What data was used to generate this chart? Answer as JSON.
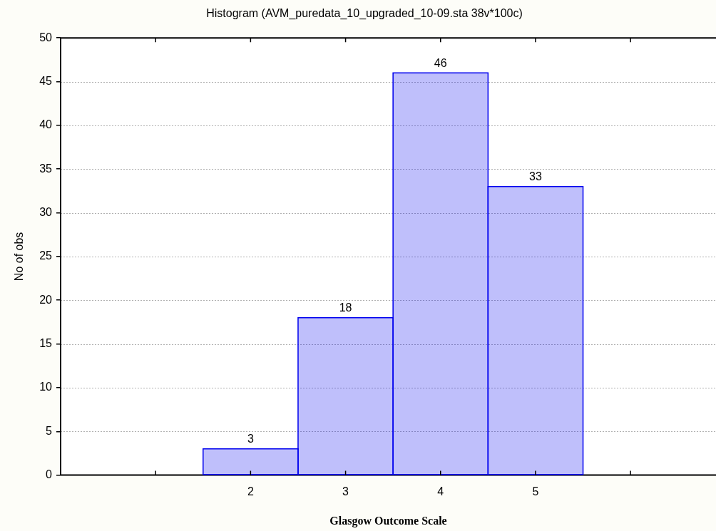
{
  "chart_data": {
    "type": "histogram",
    "title": "Histogram (AVM_puredata_10_upgraded_10-09.sta 38v*100c)",
    "xlabel": "Glasgow Outcome Scale",
    "ylabel": "No of obs",
    "bins": [
      1.5,
      2.5,
      3.5,
      4.5,
      5.5
    ],
    "values": [
      3,
      18,
      46,
      33
    ],
    "color": "#0000ee",
    "xlim": [
      0,
      6.9
    ],
    "xticks": [
      {
        "value": 1,
        "label": null
      },
      2,
      3,
      4,
      5,
      {
        "value": 6,
        "label": null
      }
    ],
    "ylim": [
      0,
      50
    ],
    "yticks": [
      0,
      5,
      10,
      15,
      20,
      25,
      30,
      35,
      40,
      45,
      50
    ],
    "grid": "y",
    "data_labels": true,
    "legend": false
  }
}
